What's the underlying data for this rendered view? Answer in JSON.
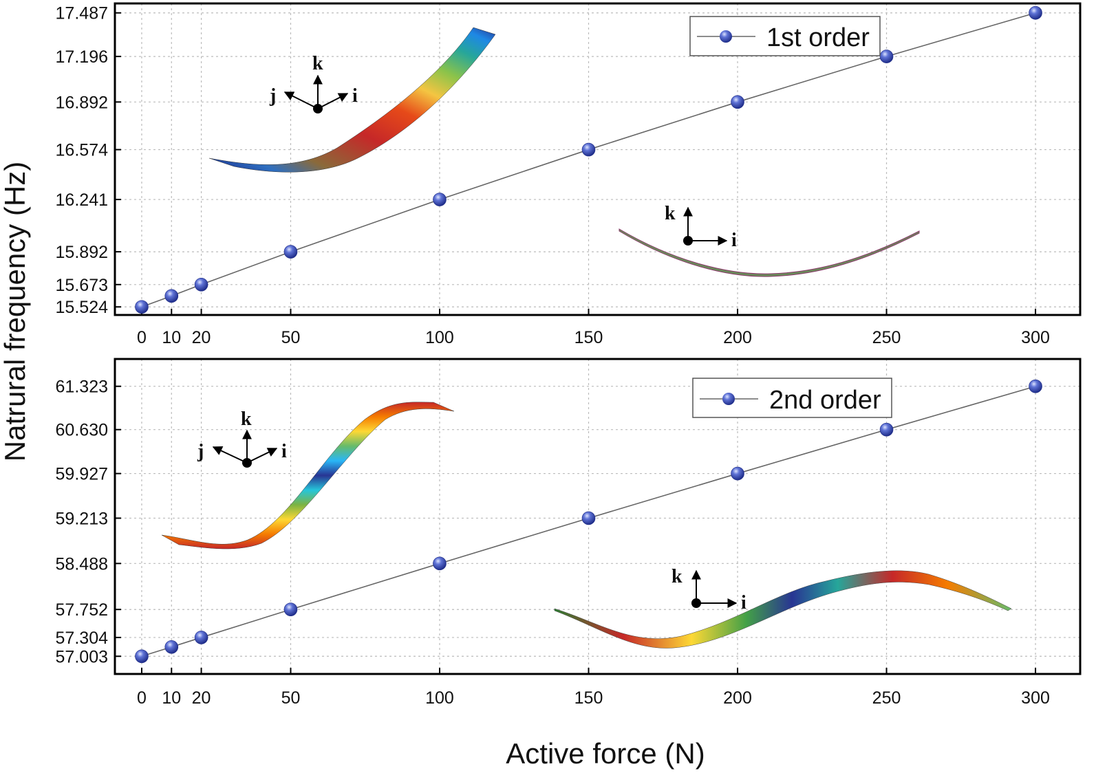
{
  "figure": {
    "ylabel": "Natrural frequency (Hz)",
    "xlabel": "Active force (N)"
  },
  "axis_letters": {
    "i": "i",
    "j": "j",
    "k": "k"
  },
  "chart_data": [
    {
      "type": "line",
      "legend": "1st order",
      "legend_position": "top-right",
      "x": [
        0,
        10,
        20,
        50,
        100,
        150,
        200,
        250,
        300
      ],
      "y": [
        15.524,
        15.597,
        15.673,
        15.892,
        16.241,
        16.574,
        16.892,
        17.196,
        17.487
      ],
      "xticks": [
        "0",
        "10",
        "20",
        "50",
        "100",
        "150",
        "200",
        "250",
        "300"
      ],
      "yticks": [
        "15.524",
        "15.673",
        "15.892",
        "16.241",
        "16.574",
        "16.892",
        "17.196",
        "17.487"
      ],
      "xlim": [
        -9,
        315
      ],
      "ylim": [
        15.47,
        17.55
      ],
      "grid": true,
      "color": "#3344aa"
    },
    {
      "type": "line",
      "legend": "2nd order",
      "legend_position": "top-right",
      "x": [
        0,
        10,
        20,
        50,
        100,
        150,
        200,
        250,
        300
      ],
      "y": [
        57.003,
        57.152,
        57.304,
        57.752,
        58.488,
        59.213,
        59.927,
        60.63,
        61.323
      ],
      "xticks": [
        "0",
        "10",
        "20",
        "50",
        "100",
        "150",
        "200",
        "250",
        "300"
      ],
      "yticks": [
        "57.003",
        "57.304",
        "57.752",
        "58.488",
        "59.213",
        "59.927",
        "60.630",
        "61.323"
      ],
      "xlim": [
        -9,
        315
      ],
      "ylim": [
        56.72,
        61.76
      ],
      "grid": true,
      "color": "#3344aa"
    }
  ]
}
